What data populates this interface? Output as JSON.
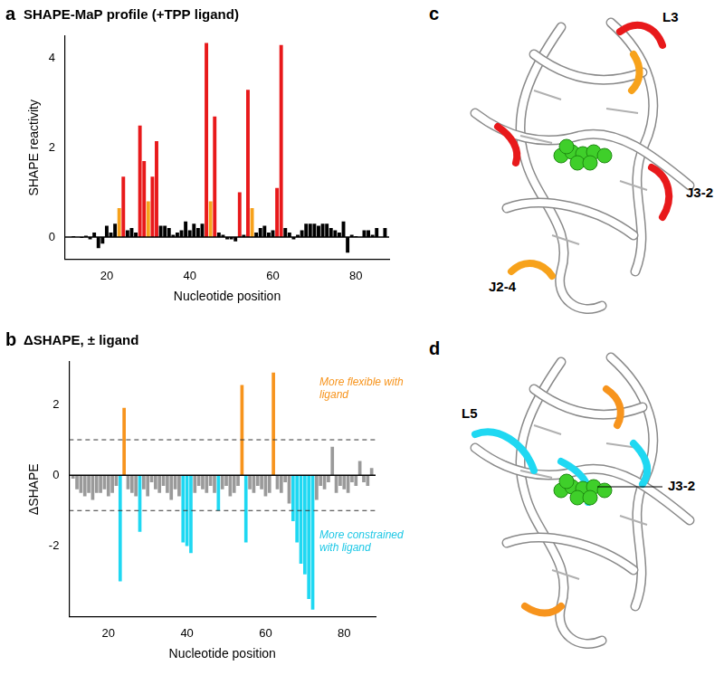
{
  "chart_data": [
    {
      "type": "bar",
      "panel": "a",
      "title": "SHAPE-MaP profile (+TPP ligand)",
      "x_label": "Nucleotide position",
      "y_label": "SHAPE reactivity",
      "x": [
        11,
        12,
        13,
        14,
        15,
        16,
        17,
        18,
        19,
        20,
        21,
        22,
        23,
        24,
        25,
        26,
        27,
        28,
        29,
        30,
        31,
        32,
        33,
        34,
        35,
        36,
        37,
        38,
        39,
        40,
        41,
        42,
        43,
        44,
        45,
        46,
        47,
        48,
        49,
        50,
        51,
        52,
        53,
        54,
        55,
        56,
        57,
        58,
        59,
        60,
        61,
        62,
        63,
        64,
        65,
        66,
        67,
        68,
        69,
        70,
        71,
        72,
        73,
        74,
        75,
        76,
        77,
        78,
        79,
        80,
        81,
        82,
        83,
        84,
        85,
        86,
        87
      ],
      "values": [
        0,
        0.02,
        0,
        -0.02,
        0.03,
        -0.05,
        0.1,
        -0.25,
        -0.15,
        0.25,
        0.1,
        0.3,
        0.65,
        1.35,
        0.15,
        0.2,
        0.1,
        2.5,
        1.7,
        0.8,
        1.35,
        2.15,
        0.25,
        0.25,
        0.2,
        0.05,
        0.1,
        0.15,
        0.35,
        0.15,
        0.3,
        0.2,
        0.3,
        4.35,
        0.8,
        2.7,
        0.1,
        0.05,
        -0.05,
        -0.05,
        -0.1,
        1.0,
        0.05,
        3.3,
        0.65,
        0.1,
        0.2,
        0.25,
        0.1,
        0.15,
        1.1,
        4.3,
        0.2,
        0.1,
        -0.05,
        0.05,
        0.15,
        0.3,
        0.3,
        0.3,
        0.25,
        0.3,
        0.3,
        0.2,
        0.15,
        0.1,
        0.35,
        -0.35,
        0.05,
        0.02,
        0,
        0.15,
        0.15,
        0.05,
        0.2,
        0,
        0.2
      ],
      "colors": [
        "#000000",
        "#000000",
        "#000000",
        "#000000",
        "#000000",
        "#000000",
        "#000000",
        "#000000",
        "#000000",
        "#000000",
        "#000000",
        "#000000",
        "#f7a21b",
        "#e8191b",
        "#000000",
        "#000000",
        "#000000",
        "#e8191b",
        "#e8191b",
        "#f7a21b",
        "#e8191b",
        "#e8191b",
        "#000000",
        "#000000",
        "#000000",
        "#000000",
        "#000000",
        "#000000",
        "#000000",
        "#000000",
        "#000000",
        "#000000",
        "#000000",
        "#e8191b",
        "#f7a21b",
        "#e8191b",
        "#000000",
        "#000000",
        "#000000",
        "#000000",
        "#000000",
        "#e8191b",
        "#000000",
        "#e8191b",
        "#f7a21b",
        "#000000",
        "#000000",
        "#000000",
        "#000000",
        "#000000",
        "#e8191b",
        "#e8191b",
        "#000000",
        "#000000",
        "#000000",
        "#000000",
        "#000000",
        "#000000",
        "#000000",
        "#000000",
        "#000000",
        "#000000",
        "#000000",
        "#000000",
        "#000000",
        "#000000",
        "#000000",
        "#000000",
        "#000000",
        "#000000",
        "#000000",
        "#000000",
        "#000000",
        "#000000",
        "#000000",
        "#000000",
        "#000000"
      ],
      "xlim": [
        10,
        88
      ],
      "xticks": [
        20,
        40,
        60,
        80
      ],
      "ylim": [
        -0.5,
        4.5
      ],
      "yticks": [
        0,
        2,
        4
      ],
      "grid": false
    },
    {
      "type": "bar",
      "panel": "b",
      "title": "ΔSHAPE, ± ligand",
      "x_label": "Nucleotide position",
      "y_label": "ΔSHAPE",
      "x": [
        11,
        12,
        13,
        14,
        15,
        16,
        17,
        18,
        19,
        20,
        21,
        22,
        23,
        24,
        25,
        26,
        27,
        28,
        29,
        30,
        31,
        32,
        33,
        34,
        35,
        36,
        37,
        38,
        39,
        40,
        41,
        42,
        43,
        44,
        45,
        46,
        47,
        48,
        49,
        50,
        51,
        52,
        53,
        54,
        55,
        56,
        57,
        58,
        59,
        60,
        61,
        62,
        63,
        64,
        65,
        66,
        67,
        68,
        69,
        70,
        71,
        72,
        73,
        74,
        75,
        76,
        77,
        78,
        79,
        80,
        81,
        82,
        83,
        84,
        85,
        86,
        87
      ],
      "values": [
        -0.1,
        -0.4,
        -0.5,
        -0.6,
        -0.5,
        -0.7,
        -0.5,
        -0.5,
        -0.4,
        -0.6,
        -0.5,
        -0.3,
        -3.0,
        1.9,
        -0.4,
        -0.5,
        -0.6,
        -1.6,
        -0.4,
        -0.6,
        -0.2,
        -0.4,
        -0.5,
        -0.3,
        -0.5,
        -0.7,
        -0.4,
        -0.6,
        -1.9,
        -2.0,
        -2.2,
        -0.5,
        -0.3,
        -0.4,
        -0.5,
        -0.3,
        -0.5,
        -1.0,
        -0.4,
        -0.3,
        -0.6,
        -0.5,
        -0.3,
        2.55,
        -1.9,
        -0.4,
        -0.5,
        -0.3,
        -0.4,
        -0.6,
        -0.5,
        2.9,
        -0.4,
        -0.5,
        -0.2,
        -0.8,
        -1.3,
        -1.9,
        -2.5,
        -2.8,
        -3.5,
        -3.8,
        -0.7,
        -0.3,
        -0.4,
        -0.2,
        0.8,
        -0.5,
        -0.3,
        -0.4,
        -0.5,
        -0.2,
        -0.3,
        0.4,
        -0.2,
        -0.3,
        0.2
      ],
      "colors": [
        "#9a9a9a",
        "#9a9a9a",
        "#9a9a9a",
        "#9a9a9a",
        "#9a9a9a",
        "#9a9a9a",
        "#9a9a9a",
        "#9a9a9a",
        "#9a9a9a",
        "#9a9a9a",
        "#9a9a9a",
        "#9a9a9a",
        "#1fd8f2",
        "#f7941d",
        "#9a9a9a",
        "#9a9a9a",
        "#9a9a9a",
        "#1fd8f2",
        "#9a9a9a",
        "#9a9a9a",
        "#9a9a9a",
        "#9a9a9a",
        "#9a9a9a",
        "#9a9a9a",
        "#9a9a9a",
        "#9a9a9a",
        "#9a9a9a",
        "#9a9a9a",
        "#1fd8f2",
        "#1fd8f2",
        "#1fd8f2",
        "#9a9a9a",
        "#9a9a9a",
        "#9a9a9a",
        "#9a9a9a",
        "#9a9a9a",
        "#9a9a9a",
        "#1fd8f2",
        "#9a9a9a",
        "#9a9a9a",
        "#9a9a9a",
        "#9a9a9a",
        "#9a9a9a",
        "#f7941d",
        "#1fd8f2",
        "#9a9a9a",
        "#9a9a9a",
        "#9a9a9a",
        "#9a9a9a",
        "#9a9a9a",
        "#9a9a9a",
        "#f7941d",
        "#9a9a9a",
        "#9a9a9a",
        "#9a9a9a",
        "#9a9a9a",
        "#1fd8f2",
        "#1fd8f2",
        "#1fd8f2",
        "#1fd8f2",
        "#1fd8f2",
        "#1fd8f2",
        "#9a9a9a",
        "#9a9a9a",
        "#9a9a9a",
        "#9a9a9a",
        "#9a9a9a",
        "#9a9a9a",
        "#9a9a9a",
        "#9a9a9a",
        "#9a9a9a",
        "#9a9a9a",
        "#9a9a9a",
        "#9a9a9a",
        "#9a9a9a",
        "#9a9a9a",
        "#9a9a9a"
      ],
      "thresholds": [
        1,
        -1
      ],
      "annotations": [
        {
          "text": "More flexible with ligand",
          "color": "#f7941d"
        },
        {
          "text": "More constrained with ligand",
          "color": "#1fc8e6"
        }
      ],
      "xlim": [
        10,
        88
      ],
      "xticks": [
        20,
        40,
        60,
        80
      ],
      "ylim": [
        -4,
        3.2
      ],
      "yticks": [
        -2,
        0,
        2
      ],
      "grid": false
    }
  ],
  "structures": [
    {
      "panel": "c",
      "labels": [
        "L3",
        "J3-2",
        "J2-4"
      ]
    },
    {
      "panel": "d",
      "labels": [
        "L5",
        "J3-2"
      ]
    }
  ]
}
